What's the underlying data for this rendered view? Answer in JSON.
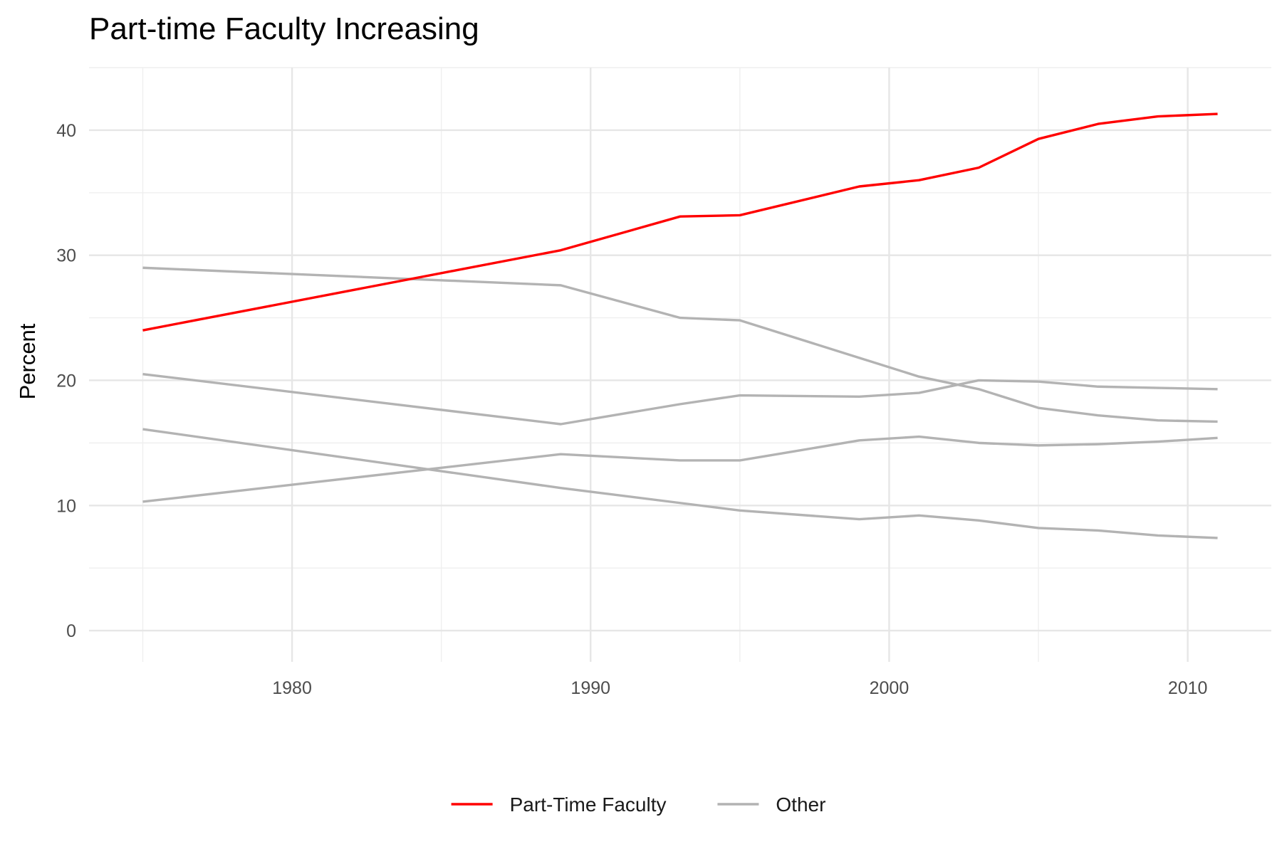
{
  "chart_data": {
    "type": "line",
    "title": "Part-time Faculty Increasing",
    "xlabel": "",
    "ylabel": "Percent",
    "xlim": [
      1973.2,
      2012.8
    ],
    "ylim": [
      -2.5,
      45
    ],
    "x_ticks": [
      1980,
      1990,
      2000,
      2010
    ],
    "y_ticks": [
      0,
      10,
      20,
      30,
      40
    ],
    "grid": true,
    "legend_position": "bottom",
    "legend": [
      {
        "label": "Part-Time Faculty",
        "color": "#ff0000"
      },
      {
        "label": "Other",
        "color": "#b3b3b3"
      }
    ],
    "x": [
      1975,
      1989,
      1993,
      1995,
      1999,
      2001,
      2003,
      2005,
      2007,
      2009,
      2011
    ],
    "series": [
      {
        "name": "Part-Time Faculty",
        "group": "Part-Time Faculty",
        "color": "#ff0000",
        "values": [
          24.0,
          30.4,
          33.1,
          33.2,
          35.5,
          36.0,
          37.0,
          39.3,
          40.5,
          41.1,
          41.3
        ]
      },
      {
        "group": "Other",
        "color": "#b3b3b3",
        "values": [
          29.0,
          27.6,
          25.0,
          24.8,
          21.8,
          20.3,
          19.3,
          17.8,
          17.2,
          16.8,
          16.7
        ]
      },
      {
        "group": "Other",
        "color": "#b3b3b3",
        "values": [
          20.5,
          16.5,
          18.1,
          18.8,
          18.7,
          19.0,
          20.0,
          19.9,
          19.5,
          19.4,
          19.3
        ]
      },
      {
        "group": "Other",
        "color": "#b3b3b3",
        "values": [
          10.3,
          14.1,
          13.6,
          13.6,
          15.2,
          15.5,
          15.0,
          14.8,
          14.9,
          15.1,
          15.4
        ]
      },
      {
        "group": "Other",
        "color": "#b3b3b3",
        "values": [
          16.1,
          11.4,
          10.2,
          9.6,
          8.9,
          9.2,
          8.8,
          8.2,
          8.0,
          7.6,
          7.4
        ]
      }
    ]
  }
}
